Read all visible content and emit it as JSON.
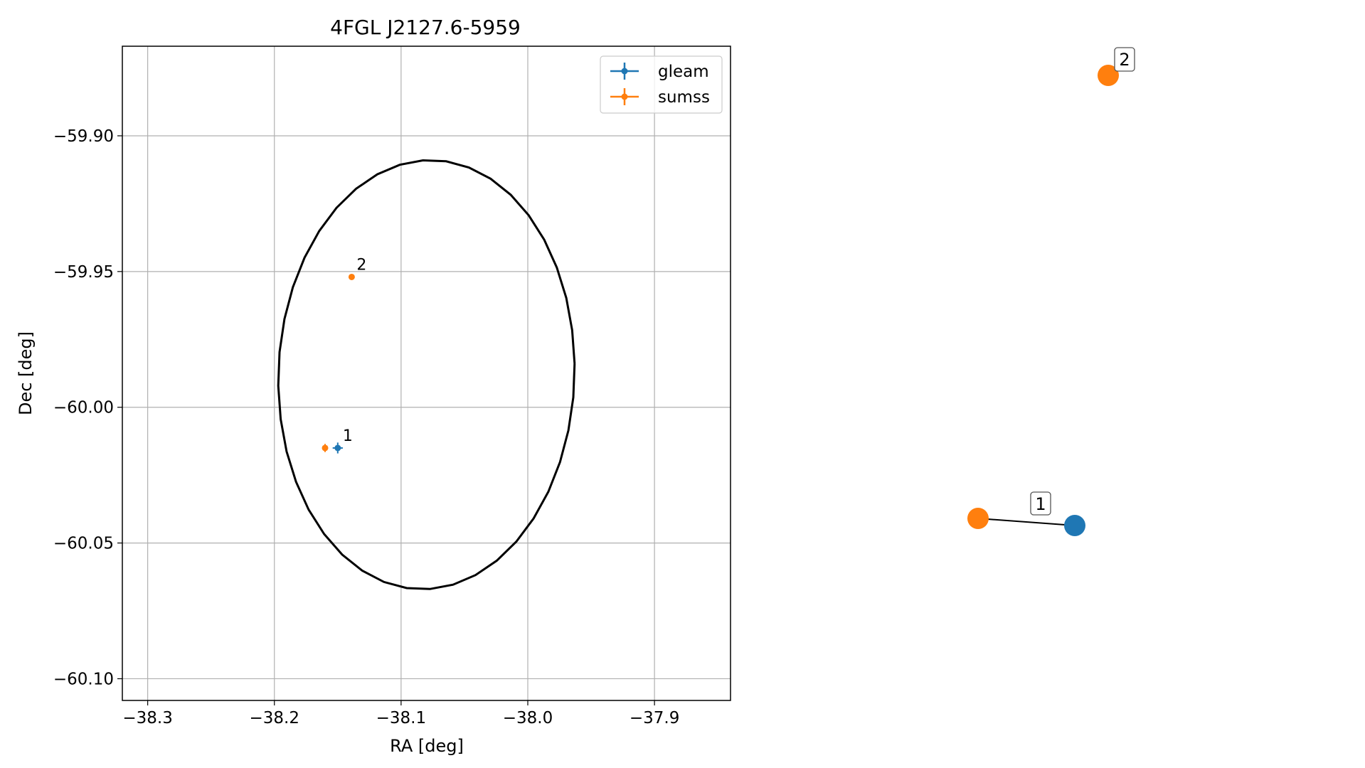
{
  "chart_data": [
    {
      "type": "scatter",
      "title": "4FGL J2127.6-5959",
      "xlabel": "RA [deg]",
      "ylabel": "Dec [deg]",
      "xlim": [
        -38.32,
        -37.84
      ],
      "ylim": [
        -60.108,
        -59.867
      ],
      "xticks": [
        -38.3,
        -38.2,
        -38.1,
        -38.0,
        -37.9
      ],
      "xtick_labels": [
        "−38.3",
        "−38.2",
        "−38.1",
        "−38.0",
        "−37.9"
      ],
      "yticks": [
        -59.9,
        -59.95,
        -60.0,
        -60.05,
        -60.1
      ],
      "ytick_labels": [
        "−59.90",
        "−59.95",
        "−60.00",
        "−60.05",
        "−60.10"
      ],
      "grid": true,
      "legend_position": "top-right",
      "series": [
        {
          "name": "gleam",
          "color": "#1f77b4",
          "points": [
            {
              "label": "1",
              "x": -38.15,
              "y": -60.015,
              "xerr": 0.004,
              "yerr": 0.002
            }
          ]
        },
        {
          "name": "sumss",
          "color": "#ff7f0e",
          "points": [
            {
              "label": "2",
              "x": -38.139,
              "y": -59.952,
              "xerr": 0.002,
              "yerr": 0.001
            },
            {
              "label": "",
              "x": -38.16,
              "y": -60.015,
              "xerr": 0.002,
              "yerr": 0.0015
            }
          ]
        }
      ],
      "ellipse": {
        "center": [
          -38.08,
          -59.988
        ],
        "ra_half_axis": 0.117,
        "dec_half_axis": 0.079,
        "angle_deg": 2,
        "color": "#000000"
      }
    },
    {
      "type": "network",
      "nodes": [
        {
          "id": "sumss-2",
          "color": "#ff7f0e",
          "label": "2"
        },
        {
          "id": "sumss-1",
          "color": "#ff7f0e",
          "label": ""
        },
        {
          "id": "gleam-1",
          "color": "#1f77b4",
          "label": "1"
        }
      ],
      "edges": [
        {
          "source": "sumss-1",
          "target": "gleam-1",
          "label": "1"
        }
      ]
    }
  ]
}
